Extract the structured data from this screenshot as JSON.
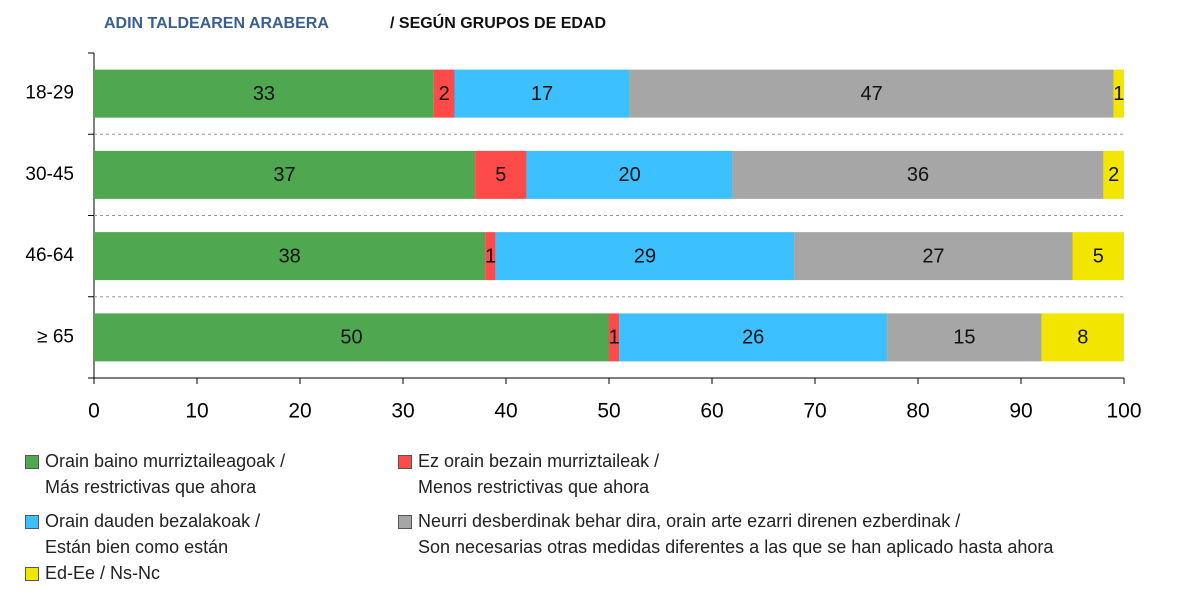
{
  "chart_data": {
    "type": "stacked_barh",
    "title": "ADIN TALDEAREN ARABERA",
    "subtitle": "/ SEGÚN GRUPOS DE EDAD",
    "categories": [
      "18-29",
      "30-45",
      "46-64",
      "≥ 65"
    ],
    "series": [
      {
        "name": "Orain baino murriztaileagoak /\nMás restrictivas que ahora",
        "color": "#4fa84f",
        "values": [
          33,
          37,
          38,
          50
        ]
      },
      {
        "name": "Ez orain bezain murriztaileak /\nMenos restrictivas que ahora",
        "color": "#ff4a4a",
        "values": [
          2,
          5,
          1,
          1
        ]
      },
      {
        "name": "Orain dauden bezalakoak /\nEstán bien como están",
        "color": "#3cc0ff",
        "values": [
          17,
          20,
          29,
          26
        ]
      },
      {
        "name": "Neurri desberdinak behar dira, orain arte ezarri direnen ezberdinak /\nSon necesarias otras medidas diferentes a las que se han aplicado hasta ahora",
        "color": "#a6a6a6",
        "values": [
          47,
          36,
          27,
          15
        ]
      },
      {
        "name": "Ed-Ee / Ns-Nc",
        "color": "#f2e600",
        "values": [
          1,
          2,
          5,
          8
        ]
      }
    ],
    "xlim": [
      0,
      100
    ],
    "xticks": [
      0,
      10,
      20,
      30,
      40,
      50,
      60,
      70,
      80,
      90,
      100
    ]
  }
}
